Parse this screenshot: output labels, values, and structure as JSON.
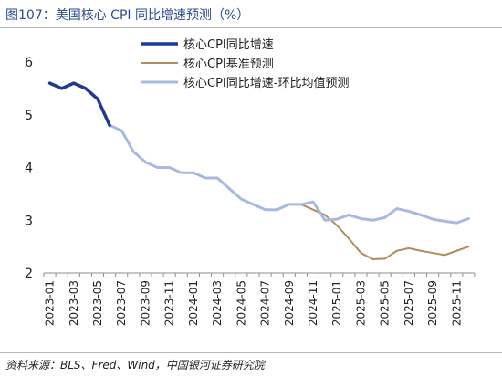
{
  "title": "图107：美国核心 CPI 同比增速预测（%）",
  "source": "资料来源：BLS、Fred、Wind，中国银河证券研究院",
  "chart_data": {
    "type": "line",
    "x": [
      "2023-01",
      "2023-02",
      "2023-03",
      "2023-04",
      "2023-05",
      "2023-06",
      "2023-07",
      "2023-08",
      "2023-09",
      "2023-10",
      "2023-11",
      "2023-12",
      "2024-01",
      "2024-02",
      "2024-03",
      "2024-04",
      "2024-05",
      "2024-06",
      "2024-07",
      "2024-08",
      "2024-09",
      "2024-10",
      "2024-11",
      "2024-12",
      "2025-01",
      "2025-02",
      "2025-03",
      "2025-04",
      "2025-05",
      "2025-06",
      "2025-07",
      "2025-08",
      "2025-09",
      "2025-10",
      "2025-11",
      "2025-12"
    ],
    "x_tick_labels": [
      "2023-01",
      "2023-03",
      "2023-05",
      "2023-07",
      "2023-09",
      "2023-11",
      "2024-01",
      "2024-03",
      "2024-05",
      "2024-07",
      "2024-09",
      "2024-11",
      "2025-01",
      "2025-03",
      "2025-05",
      "2025-07",
      "2025-09",
      "2025-11"
    ],
    "ylim": [
      2,
      6
    ],
    "yticks": [
      "2",
      "3",
      "4",
      "5",
      "6"
    ],
    "legend_position": "top-left",
    "series": [
      {
        "name": "核心CPI同比增速",
        "color": "#1f3a93",
        "width": 3.5,
        "values": [
          5.6,
          5.5,
          5.6,
          5.5,
          5.3,
          4.8,
          null,
          null,
          null,
          null,
          null,
          null,
          null,
          null,
          null,
          null,
          null,
          null,
          null,
          null,
          null,
          null,
          null,
          null,
          null,
          null,
          null,
          null,
          null,
          null,
          null,
          null,
          null,
          null,
          null,
          null
        ]
      },
      {
        "name": "核心CPI基准预测",
        "color": "#b38b5d",
        "width": 2,
        "values": [
          null,
          null,
          null,
          null,
          null,
          null,
          null,
          null,
          null,
          null,
          null,
          null,
          null,
          null,
          null,
          null,
          null,
          null,
          null,
          null,
          null,
          3.3,
          3.2,
          3.1,
          2.9,
          2.65,
          2.38,
          2.26,
          2.27,
          2.42,
          2.47,
          2.42,
          2.38,
          2.34,
          2.42,
          2.5
        ]
      },
      {
        "name": "核心CPI同比增速-环比均值预测",
        "color": "#a7b9e3",
        "width": 3,
        "values": [
          null,
          null,
          null,
          null,
          null,
          4.8,
          4.7,
          4.3,
          4.1,
          4.0,
          4.0,
          3.9,
          3.9,
          3.8,
          3.8,
          3.6,
          3.4,
          3.3,
          3.2,
          3.2,
          3.3,
          3.3,
          3.35,
          3.0,
          3.02,
          3.1,
          3.03,
          3.0,
          3.05,
          3.22,
          3.17,
          3.1,
          3.02,
          2.98,
          2.95,
          3.03
        ]
      }
    ]
  }
}
